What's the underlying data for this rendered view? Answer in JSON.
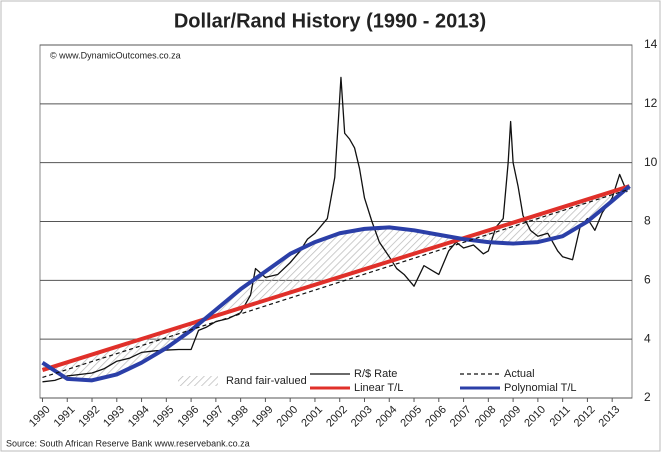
{
  "chart_data": {
    "type": "line",
    "title": "Dollar/Rand History (1990 - 2013)",
    "copyright": "© www.DynamicOutcomes.co.za",
    "source": "Source:  South African Reserve Bank   www.reservebank.co.za",
    "area_label": "Rand fair-valued",
    "xlim": [
      1989.9,
      2013.8
    ],
    "xticks": [
      1990,
      1991,
      1992,
      1993,
      1994,
      1995,
      1996,
      1997,
      1998,
      1999,
      2000,
      2001,
      2002,
      2003,
      2004,
      2005,
      2006,
      2007,
      2008,
      2009,
      2010,
      2011,
      2012,
      2013
    ],
    "ylim": [
      2,
      14
    ],
    "yticks": [
      2,
      4,
      6,
      8,
      10,
      12,
      14
    ],
    "grid": true,
    "series": [
      {
        "name": "R/$ Rate",
        "color": "#111111",
        "width": 1.3,
        "dash": false,
        "x": [
          1990,
          1990.5,
          1991,
          1991.5,
          1992,
          1992.5,
          1993,
          1993.5,
          1994,
          1994.5,
          1995,
          1995.5,
          1996,
          1996.3,
          1996.6,
          1997,
          1997.5,
          1998,
          1998.4,
          1998.6,
          1999,
          1999.5,
          2000,
          2000.4,
          2000.7,
          2001,
          2001.5,
          2001.8,
          2001.95,
          2002.05,
          2002.2,
          2002.4,
          2002.6,
          2002.8,
          2003,
          2003.3,
          2003.6,
          2004,
          2004.3,
          2004.6,
          2005,
          2005.4,
          2005.8,
          2006,
          2006.4,
          2006.7,
          2007,
          2007.4,
          2007.8,
          2008,
          2008.3,
          2008.6,
          2008.8,
          2008.9,
          2009,
          2009.2,
          2009.4,
          2009.7,
          2010,
          2010.4,
          2010.8,
          2011,
          2011.4,
          2011.7,
          2012,
          2012.3,
          2012.6,
          2013,
          2013.3,
          2013.6
        ],
        "values": [
          2.55,
          2.6,
          2.75,
          2.8,
          2.85,
          3.0,
          3.25,
          3.35,
          3.55,
          3.6,
          3.63,
          3.65,
          3.65,
          4.3,
          4.4,
          4.6,
          4.7,
          4.9,
          5.5,
          6.4,
          6.1,
          6.2,
          6.6,
          7.0,
          7.4,
          7.6,
          8.1,
          9.5,
          11.5,
          12.9,
          11.0,
          10.8,
          10.5,
          9.8,
          8.8,
          8.0,
          7.3,
          6.8,
          6.4,
          6.2,
          5.8,
          6.5,
          6.3,
          6.2,
          7.0,
          7.3,
          7.1,
          7.2,
          6.9,
          7.0,
          7.8,
          8.1,
          10.0,
          11.4,
          10.0,
          9.2,
          8.2,
          7.7,
          7.5,
          7.6,
          7.0,
          6.8,
          6.7,
          7.8,
          8.1,
          7.7,
          8.3,
          8.8,
          9.6,
          9.0
        ]
      },
      {
        "name": "Linear T/L",
        "color": "#e0302a",
        "width": 4,
        "dash": false,
        "x": [
          1990,
          2013.7
        ],
        "values": [
          2.95,
          9.2
        ]
      },
      {
        "name": "Polynomial T/L",
        "color": "#2b3fa8",
        "width": 4,
        "dash": false,
        "x": [
          1990,
          1991,
          1992,
          1993,
          1994,
          1995,
          1996,
          1997,
          1998,
          1999,
          2000,
          2001,
          2002,
          2003,
          2004,
          2005,
          2006,
          2007,
          2008,
          2009,
          2010,
          2011,
          2012,
          2013,
          2013.7
        ],
        "values": [
          3.2,
          2.65,
          2.6,
          2.8,
          3.2,
          3.7,
          4.3,
          5.0,
          5.7,
          6.3,
          6.9,
          7.3,
          7.6,
          7.75,
          7.8,
          7.7,
          7.55,
          7.4,
          7.3,
          7.25,
          7.3,
          7.5,
          8.0,
          8.7,
          9.2
        ]
      },
      {
        "name": "Actual",
        "color": "#111111",
        "width": 1.2,
        "dash": true,
        "x": [
          1990,
          2013.7
        ],
        "values": [
          2.7,
          9.1
        ]
      }
    ]
  }
}
